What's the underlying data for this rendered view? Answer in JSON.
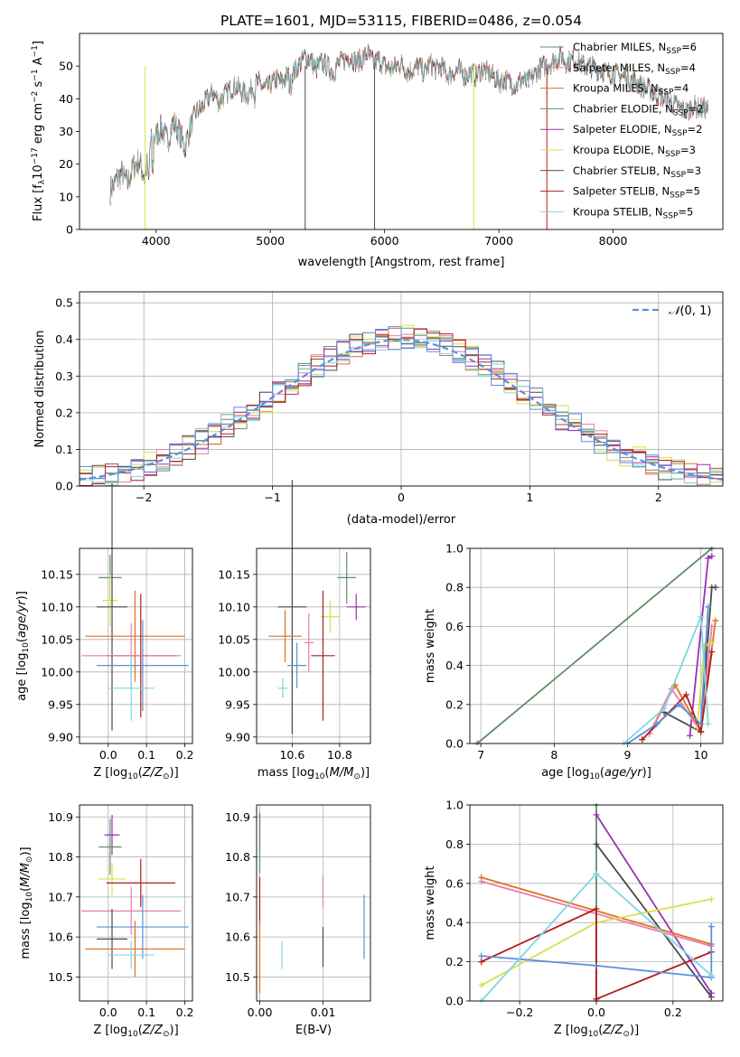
{
  "chart_data": [
    {
      "type": "line",
      "title": "PLATE=1601, MJD=53115, FIBERID=0486, z=0.054",
      "xlabel": "wavelength [Angstrom, rest frame]",
      "ylabel": "Flux [f_λ10^-17 erg cm^-2 s^-1 A^-1]",
      "xlim": [
        3330,
        8960
      ],
      "ylim": [
        0,
        60
      ],
      "xticks": [
        "4000",
        "5000",
        "6000",
        "7000",
        "8000"
      ],
      "yticks": [
        "0",
        "10",
        "20",
        "30",
        "40",
        "50"
      ],
      "grid": false,
      "legend_position": "top-right",
      "x": [
        3600,
        3650,
        3700,
        3750,
        3800,
        3850,
        3900,
        3950,
        4000,
        4050,
        4100,
        4150,
        4200,
        4250,
        4300,
        4350,
        4400,
        4450,
        4500,
        4550,
        4600,
        4650,
        4700,
        4750,
        4800,
        4850,
        4900,
        4950,
        5000,
        5050,
        5100,
        5150,
        5200,
        5250,
        5300,
        5350,
        5400,
        5450,
        5500,
        5550,
        5600,
        5650,
        5700,
        5750,
        5800,
        5850,
        5900,
        5950,
        6000,
        6050,
        6100,
        6150,
        6200,
        6250,
        6300,
        6350,
        6400,
        6450,
        6500,
        6550,
        6600,
        6650,
        6700,
        6750,
        6800,
        6850,
        6900,
        6950,
        7000,
        7050,
        7100,
        7150,
        7200,
        7250,
        7300,
        7350,
        7400,
        7450,
        7500,
        7550,
        7600,
        7650,
        7700,
        7750,
        7800,
        7850,
        7900,
        7950,
        8000,
        8050,
        8100,
        8150,
        8200,
        8250,
        8300,
        8350,
        8400,
        8450,
        8500,
        8550,
        8600,
        8650,
        8700,
        8750,
        8800,
        8850
      ],
      "y": [
        12,
        15,
        17,
        14,
        19,
        21,
        16,
        26,
        29,
        31,
        27,
        33,
        30,
        25,
        31,
        36,
        37,
        40,
        42,
        39,
        41,
        43,
        44,
        42,
        41,
        44,
        45,
        43,
        44,
        46,
        45,
        47,
        48,
        50,
        53,
        52,
        49,
        51,
        50,
        48,
        51,
        52,
        53,
        51,
        52,
        54,
        51,
        52,
        50,
        49,
        50,
        51,
        48,
        49,
        50,
        48,
        51,
        49,
        50,
        47,
        48,
        49,
        47,
        48,
        47,
        49,
        48,
        47,
        45,
        46,
        45,
        44,
        46,
        45,
        47,
        49,
        50,
        51,
        52,
        53,
        51,
        52,
        51,
        50,
        50,
        49,
        49,
        48,
        48,
        47,
        47,
        46,
        45,
        44,
        43,
        42,
        41,
        40,
        39,
        38,
        37,
        36,
        38,
        37,
        37,
        36
      ],
      "series": [
        {
          "name": "Chabrier MILES, N_SSP=6",
          "color": "#5f8f6a"
        },
        {
          "name": "Salpeter MILES, N_SSP=4",
          "color": "#e77fae"
        },
        {
          "name": "Kroupa MILES, N_SSP=4",
          "color": "#e0701b"
        },
        {
          "name": "Chabrier ELODIE, N_SSP=2",
          "color": "#5f8f6a"
        },
        {
          "name": "Salpeter ELODIE, N_SSP=2",
          "color": "#9b30b8"
        },
        {
          "name": "Kroupa ELODIE, N_SSP=3",
          "color": "#d8e04a"
        },
        {
          "name": "Chabrier STELIB, N_SSP=3",
          "color": "#4a4a4a"
        },
        {
          "name": "Salpeter STELIB, N_SSP=5",
          "color": "#b31b1b"
        },
        {
          "name": "Kroupa STELIB, N_SSP=5",
          "color": "#7fd6e0"
        }
      ]
    },
    {
      "type": "line",
      "xlabel": "(data-model)/error",
      "ylabel": "Normed distribution",
      "xlim": [
        -2.5,
        2.5
      ],
      "ylim": [
        0,
        0.53
      ],
      "xticks": [
        "−2",
        "−1",
        "0",
        "1",
        "2"
      ],
      "yticks": [
        "0.0",
        "0.1",
        "0.2",
        "0.3",
        "0.4",
        "0.5"
      ],
      "grid": true,
      "legend_position": "top-right",
      "reference_curve": {
        "name": "𝒩(0, 1)",
        "color": "#5b8fd9"
      },
      "bin_width": 0.1,
      "series_colors": [
        "#5f8f6a",
        "#e77fae",
        "#e0701b",
        "#9b30b8",
        "#d8e04a",
        "#4a4a4a",
        "#b31b1b",
        "#7fd6e0",
        "#5b8fd9"
      ]
    },
    {
      "type": "scatter",
      "xlabel": "Z [log10(Z/Z☉)]",
      "ylabel": "age  [log10(age/yr)]",
      "xlim": [
        -0.075,
        0.22
      ],
      "ylim": [
        9.89,
        10.19
      ],
      "xticks": [
        "0.0",
        "0.1",
        "0.2"
      ],
      "yticks": [
        "9.90",
        "9.95",
        "10.00",
        "10.05",
        "10.10",
        "10.15"
      ],
      "grid": true,
      "points": [
        {
          "x": 0.005,
          "y": 10.145,
          "xerr": 0.03,
          "yerr": 0.035,
          "color": "#5f8f6a"
        },
        {
          "x": 0.005,
          "y": 10.11,
          "xerr": 0.02,
          "yerr": 0.04,
          "color": "#d8e04a"
        },
        {
          "x": 0.01,
          "y": 10.1,
          "xerr": 0.04,
          "yerr": 0.19,
          "color": "#4a4a4a"
        },
        {
          "x": 0.07,
          "y": 10.055,
          "xerr": 0.13,
          "yerr": 0.07,
          "color": "#e0701b"
        },
        {
          "x": 0.085,
          "y": 10.025,
          "xerr": 0.09,
          "yerr": 0.095,
          "color": "#b31b1b"
        },
        {
          "x": 0.06,
          "y": 10.025,
          "xerr": 0.13,
          "yerr": 0.05,
          "color": "#e77fae"
        },
        {
          "x": 0.09,
          "y": 10.01,
          "xerr": 0.12,
          "yerr": 0.07,
          "color": "#5b8fd9"
        },
        {
          "x": 0.06,
          "y": 9.975,
          "xerr": 0.06,
          "yerr": 0.05,
          "color": "#7fd6e0"
        }
      ]
    },
    {
      "type": "scatter",
      "xlabel": "mass [log10(M/M☉)]",
      "xlim": [
        10.45,
        10.93
      ],
      "ylim": [
        9.89,
        10.19
      ],
      "xticks": [
        "10.6",
        "10.8"
      ],
      "yticks": [
        "9.90",
        "9.95",
        "10.00",
        "10.05",
        "10.10",
        "10.15"
      ],
      "grid": true,
      "points": [
        {
          "x": 10.83,
          "y": 10.145,
          "xerr": 0.04,
          "yerr": 0.04,
          "color": "#5f8f6a"
        },
        {
          "x": 10.87,
          "y": 10.1,
          "xerr": 0.04,
          "yerr": 0.02,
          "color": "#9b30b8"
        },
        {
          "x": 10.76,
          "y": 10.085,
          "xerr": 0.04,
          "yerr": 0.025,
          "color": "#d8e04a"
        },
        {
          "x": 10.6,
          "y": 10.1,
          "xerr": 0.06,
          "yerr": 0.195,
          "color": "#4a4a4a"
        },
        {
          "x": 10.57,
          "y": 10.055,
          "xerr": 0.07,
          "yerr": 0.04,
          "color": "#e0701b"
        },
        {
          "x": 10.73,
          "y": 10.025,
          "xerr": 0.05,
          "yerr": 0.1,
          "color": "#b31b1b"
        },
        {
          "x": 10.67,
          "y": 10.045,
          "xerr": 0.02,
          "yerr": 0.045,
          "color": "#e77fae"
        },
        {
          "x": 10.62,
          "y": 10.01,
          "xerr": 0.04,
          "yerr": 0.035,
          "color": "#5b8fd9"
        },
        {
          "x": 10.56,
          "y": 9.975,
          "xerr": 0.02,
          "yerr": 0.015,
          "color": "#7fd6e0"
        }
      ]
    },
    {
      "type": "line",
      "xlabel": "age  [log10(age/yr)]",
      "ylabel": "mass weight",
      "xlim": [
        6.85,
        10.3
      ],
      "ylim": [
        0,
        1
      ],
      "xticks": [
        "7",
        "8",
        "9",
        "10"
      ],
      "yticks": [
        "0.0",
        "0.2",
        "0.4",
        "0.6",
        "0.8",
        "1.0"
      ],
      "grid": true,
      "series": [
        {
          "color": "#5f8f6a",
          "x": [
            6.95,
            10.15
          ],
          "y": [
            0.0,
            1.0
          ]
        },
        {
          "color": "#9b30b8",
          "x": [
            9.85,
            10.1,
            10.15
          ],
          "y": [
            0.04,
            0.95,
            0.96
          ]
        },
        {
          "color": "#4a4a4a",
          "x": [
            9.5,
            10.0,
            10.15,
            10.2
          ],
          "y": [
            0.16,
            0.06,
            0.8,
            0.8
          ]
        },
        {
          "color": "#e0701b",
          "x": [
            9.3,
            9.65,
            10.0,
            10.2
          ],
          "y": [
            0.05,
            0.3,
            0.06,
            0.63
          ]
        },
        {
          "color": "#e77fae",
          "x": [
            9.3,
            9.6,
            10.0,
            10.15
          ],
          "y": [
            0.05,
            0.28,
            0.06,
            0.6
          ]
        },
        {
          "color": "#d8e04a",
          "x": [
            9.95,
            10.05,
            10.15
          ],
          "y": [
            0.08,
            0.5,
            0.52
          ]
        },
        {
          "color": "#b31b1b",
          "x": [
            9.2,
            9.8,
            10.0,
            10.15
          ],
          "y": [
            0.02,
            0.25,
            0.06,
            0.47
          ]
        },
        {
          "color": "#5b8fd9",
          "x": [
            9.0,
            9.4,
            9.7,
            10.0,
            10.1
          ],
          "y": [
            0.0,
            0.1,
            0.2,
            0.1,
            0.7
          ]
        },
        {
          "color": "#7fd6e0",
          "x": [
            8.95,
            9.5,
            10.0,
            10.1
          ],
          "y": [
            0.0,
            0.18,
            0.65,
            0.1
          ]
        }
      ]
    },
    {
      "type": "scatter",
      "xlabel": "Z [log10(Z/Z☉)]",
      "ylabel": "mass [log10(M/M☉)]",
      "xlim": [
        -0.075,
        0.22
      ],
      "ylim": [
        10.44,
        10.93
      ],
      "xticks": [
        "0.0",
        "0.1",
        "0.2"
      ],
      "yticks": [
        "10.5",
        "10.6",
        "10.7",
        "10.8",
        "10.9"
      ],
      "grid": true,
      "points": [
        {
          "x": 0.01,
          "y": 10.855,
          "xerr": 0.02,
          "yerr": 0.05,
          "color": "#9b30b8"
        },
        {
          "x": 0.005,
          "y": 10.825,
          "xerr": 0.03,
          "yerr": 0.07,
          "color": "#5f8f6a"
        },
        {
          "x": 0.01,
          "y": 10.745,
          "xerr": 0.035,
          "yerr": 0.04,
          "color": "#d8e04a"
        },
        {
          "x": 0.085,
          "y": 10.735,
          "xerr": 0.09,
          "yerr": 0.06,
          "color": "#b31b1b"
        },
        {
          "x": 0.06,
          "y": 10.665,
          "xerr": 0.13,
          "yerr": 0.06,
          "color": "#e77fae"
        },
        {
          "x": 0.09,
          "y": 10.625,
          "xerr": 0.12,
          "yerr": 0.08,
          "color": "#5b8fd9"
        },
        {
          "x": 0.01,
          "y": 10.595,
          "xerr": 0.04,
          "yerr": 0.075,
          "color": "#4a4a4a"
        },
        {
          "x": 0.07,
          "y": 10.57,
          "xerr": 0.13,
          "yerr": 0.07,
          "color": "#e0701b"
        },
        {
          "x": 0.06,
          "y": 10.555,
          "xerr": 0.06,
          "yerr": 0.035,
          "color": "#7fd6e0"
        }
      ]
    },
    {
      "type": "scatter",
      "xlabel": "E(B-V)",
      "xlim": [
        -0.0005,
        0.0175
      ],
      "ylim": [
        10.44,
        10.93
      ],
      "xticks": [
        "0.00",
        "0.01"
      ],
      "yticks": [
        "10.5",
        "10.6",
        "10.7",
        "10.8",
        "10.9"
      ],
      "grid": true,
      "points": [
        {
          "x": 0.0,
          "y": 10.86,
          "yerr": 0.05,
          "color": "#9b30b8"
        },
        {
          "x": 0.0,
          "y": 10.83,
          "yerr": 0.07,
          "color": "#5f8f6a"
        },
        {
          "x": 0.0,
          "y": 10.69,
          "yerr": 0.06,
          "color": "#b31b1b"
        },
        {
          "x": 0.0,
          "y": 10.55,
          "yerr": 0.09,
          "color": "#e0701b"
        },
        {
          "x": 0.0035,
          "y": 10.555,
          "yerr": 0.035,
          "color": "#7fd6e0"
        },
        {
          "x": 0.01,
          "y": 10.575,
          "yerr": 0.05,
          "color": "#4a4a4a"
        },
        {
          "x": 0.01,
          "y": 10.715,
          "yerr": 0.04,
          "color": "#e77fae"
        },
        {
          "x": 0.0165,
          "y": 10.625,
          "yerr": 0.08,
          "color": "#5b8fd9"
        }
      ]
    },
    {
      "type": "line",
      "xlabel": "Z [log10(Z/Z☉)]",
      "ylabel": "mass weight",
      "xlim": [
        -0.33,
        0.33
      ],
      "ylim": [
        0,
        1
      ],
      "xticks": [
        "−0.2",
        "0.0",
        "0.2"
      ],
      "yticks": [
        "0.0",
        "0.2",
        "0.4",
        "0.6",
        "0.8",
        "1.0"
      ],
      "grid": true,
      "series": [
        {
          "color": "#5f8f6a",
          "x": [
            0.0,
            0.0
          ],
          "y": [
            0.0,
            1.0
          ]
        },
        {
          "color": "#9b30b8",
          "x": [
            0.0,
            0.3
          ],
          "y": [
            0.95,
            0.04
          ]
        },
        {
          "color": "#4a4a4a",
          "x": [
            0.0,
            0.3
          ],
          "y": [
            0.8,
            0.02
          ]
        },
        {
          "color": "#e0701b",
          "x": [
            -0.3,
            0.3
          ],
          "y": [
            0.63,
            0.29
          ]
        },
        {
          "color": "#e77fae",
          "x": [
            -0.3,
            0.3
          ],
          "y": [
            0.61,
            0.28
          ]
        },
        {
          "color": "#d8e04a",
          "x": [
            -0.3,
            0.0,
            0.3
          ],
          "y": [
            0.08,
            0.4,
            0.52
          ]
        },
        {
          "color": "#b31b1b",
          "x": [
            -0.3,
            0.0,
            0.0,
            0.3
          ],
          "y": [
            0.2,
            0.47,
            0.01,
            0.25
          ]
        },
        {
          "color": "#5b8fd9",
          "x": [
            -0.3,
            0.0,
            0.3,
            0.3
          ],
          "y": [
            0.23,
            0.18,
            0.12,
            0.38
          ]
        },
        {
          "color": "#7fd6e0",
          "x": [
            -0.3,
            0.0,
            0.3
          ],
          "y": [
            0.0,
            0.65,
            0.13
          ]
        }
      ]
    }
  ]
}
